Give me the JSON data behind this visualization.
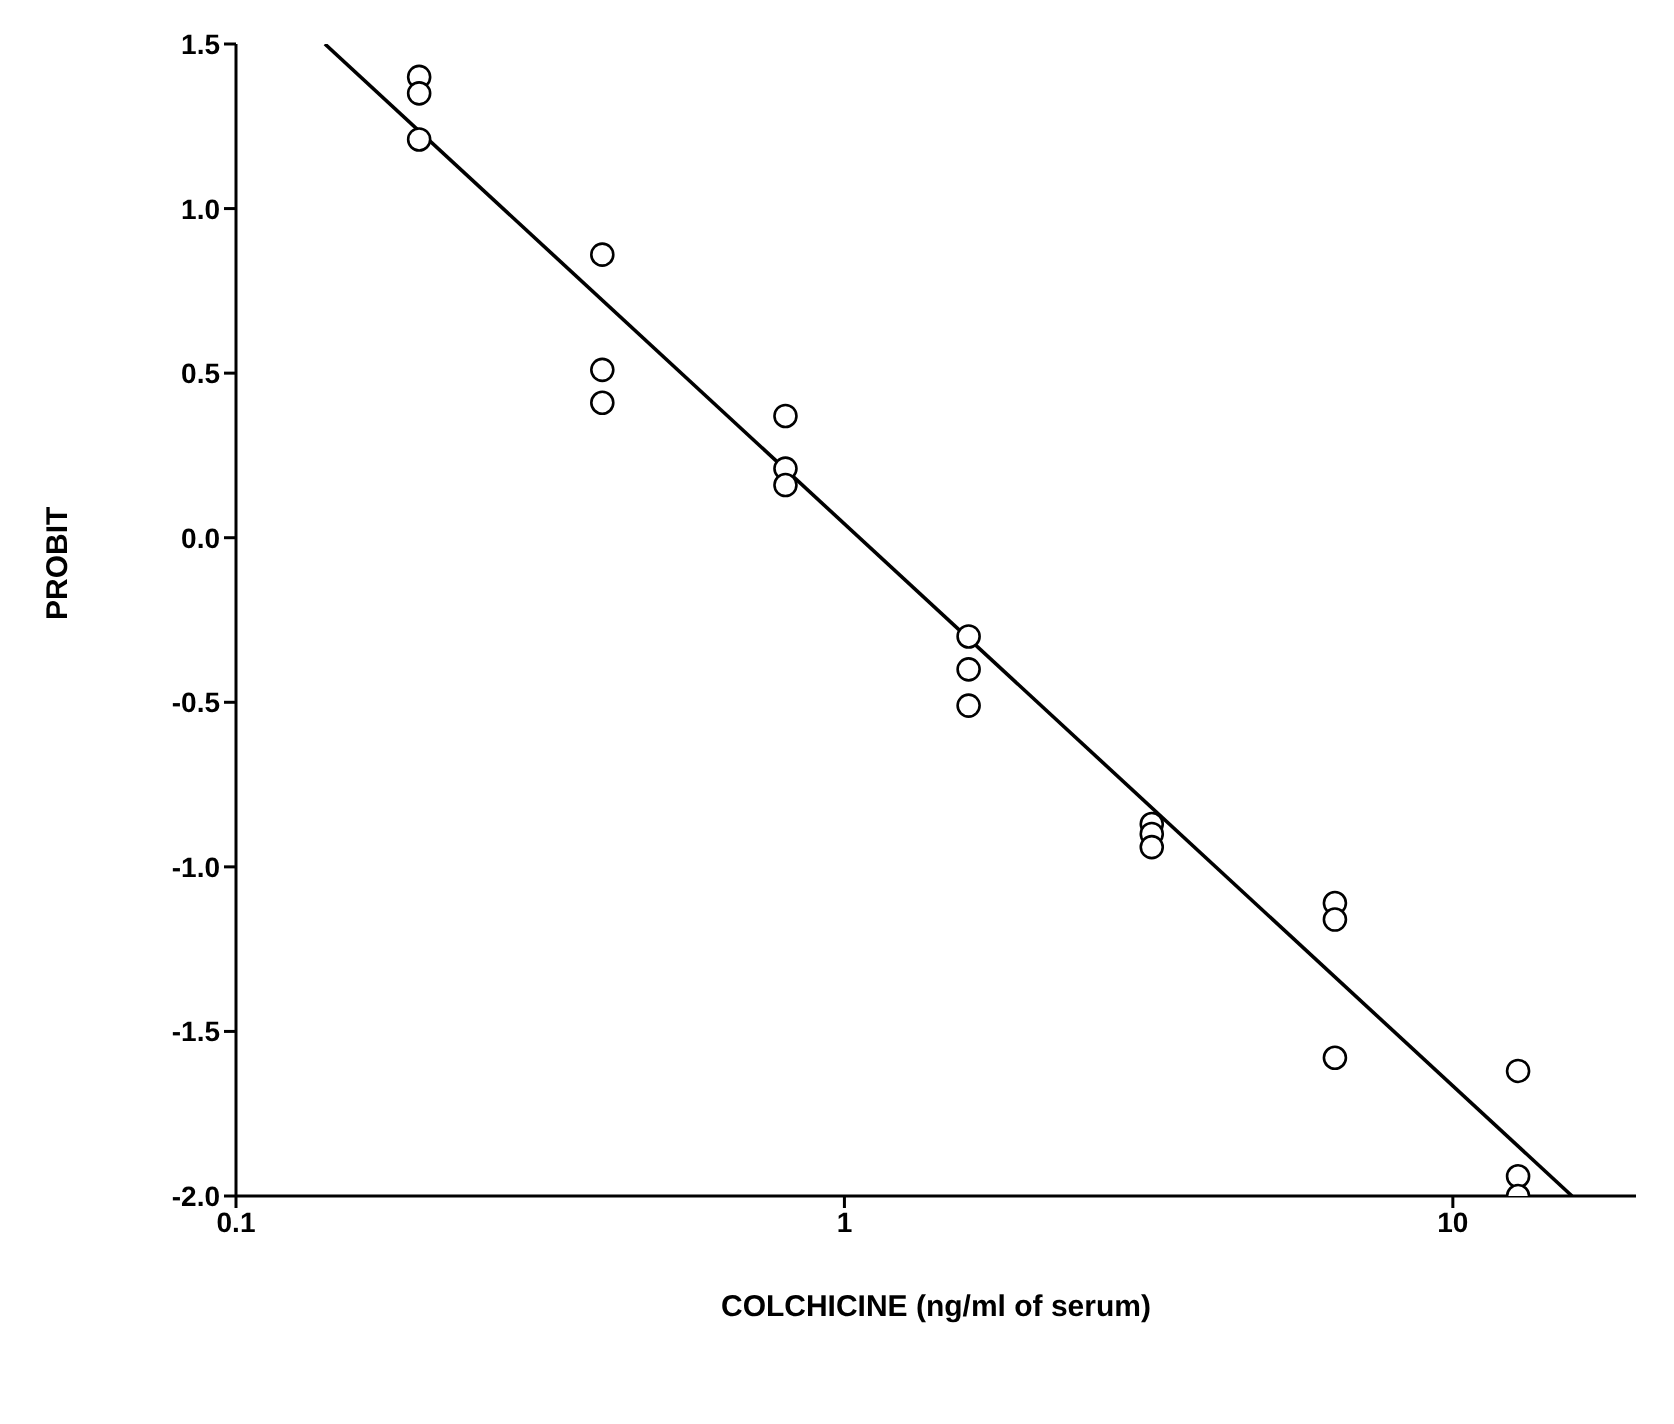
{
  "chart_data": {
    "type": "scatter",
    "xlabel": "COLCHICINE (ng/ml of serum)",
    "ylabel": "PROBIT",
    "log": "x",
    "grid": false,
    "xlim": [
      0.1,
      20
    ],
    "ylim": [
      -2,
      1.5
    ],
    "xticks": [
      0.1,
      1,
      10
    ],
    "yticks": [
      {
        "value": 1.5,
        "label": "1.5"
      },
      {
        "value": 1,
        "label": "1.0"
      },
      {
        "value": 0.5,
        "label": "0.5"
      },
      {
        "value": 0,
        "label": "0.0"
      },
      {
        "value": -0.5,
        "label": "-0.5"
      },
      {
        "value": -1,
        "label": "-1.0"
      },
      {
        "value": -1.5,
        "label": "-1.5"
      },
      {
        "value": -2,
        "label": "-2.0"
      }
    ],
    "series": [
      {
        "color": "#000000",
        "marker": "circle",
        "x": [
          0.2,
          0.2,
          0.2,
          0.4,
          0.4,
          0.4,
          0.8,
          0.8,
          0.8,
          1.6,
          1.6,
          1.6,
          3.2,
          3.2,
          3.2,
          6.4,
          6.4,
          6.4,
          12.8,
          12.8,
          12.8
        ],
        "values": [
          1.4,
          1.35,
          1.21,
          0.86,
          0.51,
          0.41,
          0.37,
          0.21,
          0.16,
          -0.3,
          -0.4,
          -0.51,
          -0.87,
          -0.9,
          -0.94,
          -1.11,
          -1.16,
          -1.58,
          -1.62,
          -1.94,
          -2.0
        ]
      },
      {
        "type": "line",
        "color": "#000000",
        "marker": "none",
        "x": [
          0.14,
          15.7
        ],
        "values": [
          1.5,
          -2.0
        ]
      }
    ]
  }
}
